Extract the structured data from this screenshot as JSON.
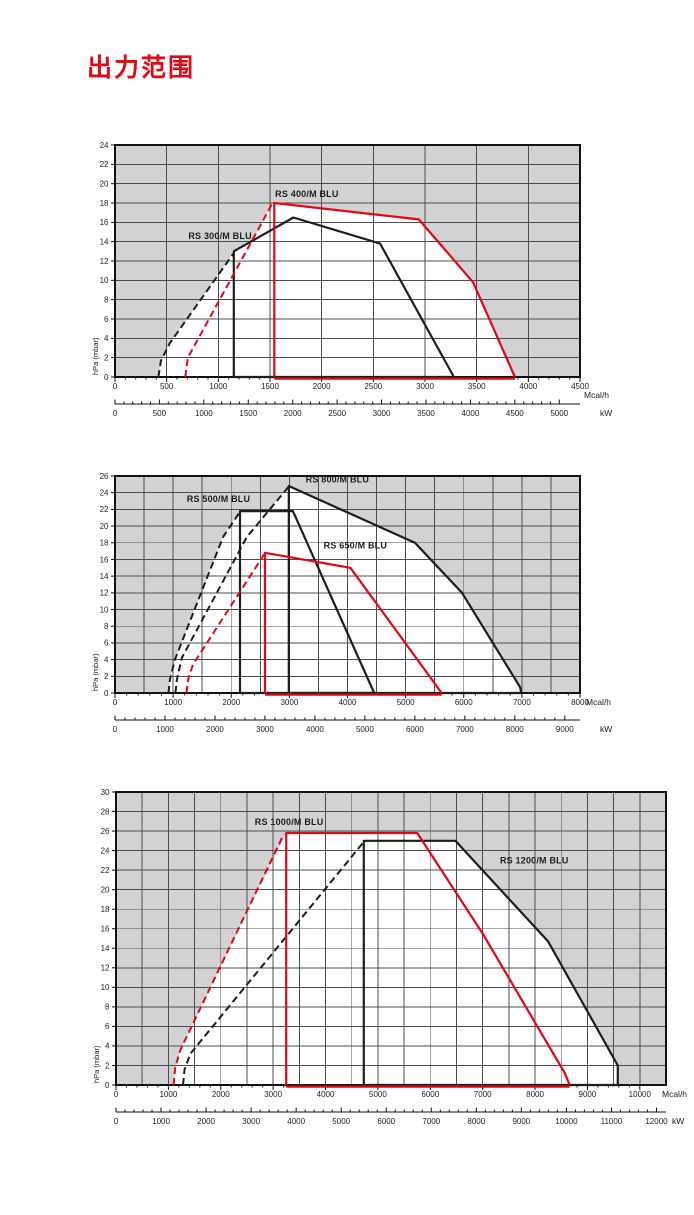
{
  "page": {
    "title": "出力范围"
  },
  "colors": {
    "red": "#e30613",
    "black": "#1d1d1b",
    "grey_region": "#d2d2d4",
    "grid_line": "#4d4d4d",
    "border": "#111111"
  },
  "chart_data": [
    {
      "type": "line",
      "ylabel": "hPa (mbar)",
      "x_unit": "Mcal/h",
      "kw_unit": "kW",
      "ylim": [
        0,
        24
      ],
      "y_tick_step": 2,
      "x_grid_max": 4500,
      "x_grid_step": 500,
      "mcal_axis": {
        "max": 4500,
        "label_step": 500,
        "minor_step": 100
      },
      "kw_axis": {
        "max": 5000,
        "label_step": 500,
        "minor_step": 100
      },
      "white_envelope": [
        [
          420,
          0
        ],
        [
          445,
          1.7
        ],
        [
          530,
          3.5
        ],
        [
          1150,
          12.9
        ],
        [
          1326,
          14.1
        ],
        [
          1520,
          17.9
        ],
        [
          1542,
          18
        ],
        [
          2940,
          16.3
        ],
        [
          3465,
          9.8
        ],
        [
          3870,
          0
        ]
      ],
      "series": [
        {
          "name": "RS 300/M BLU",
          "color": "black",
          "label_pos": [
            710,
            14.3
          ],
          "dashed": [
            [
              420,
              0
            ],
            [
              445,
              1.7
            ],
            [
              530,
              3.5
            ],
            [
              1148,
              12.8
            ]
          ],
          "solid": [
            [
              1150,
              0
            ],
            [
              1150,
              13
            ],
            [
              1726,
              16.5
            ],
            [
              2565,
              13.8
            ],
            [
              3280,
              0
            ]
          ],
          "bottom": [
            1150,
            3280
          ]
        },
        {
          "name": "RS 400/M BLU",
          "color": "red",
          "label_pos": [
            1550,
            18.6
          ],
          "dashed": [
            [
              680,
              0
            ],
            [
              705,
              2
            ],
            [
              1100,
              9.7
            ],
            [
              1520,
              17.9
            ]
          ],
          "solid": [
            [
              1542,
              0
            ],
            [
              1542,
              18
            ],
            [
              2940,
              16.3
            ],
            [
              3465,
              9.8
            ],
            [
              3870,
              0
            ]
          ],
          "bottom": [
            1542,
            3870
          ]
        }
      ]
    },
    {
      "type": "line",
      "ylabel": "hPa (mbar)",
      "x_unit": "Mcal/h",
      "kw_unit": "kW",
      "ylim": [
        0,
        26
      ],
      "y_tick_step": 2,
      "x_grid_max": 8000,
      "x_grid_step": 500,
      "mcal_axis": {
        "max": 8000,
        "label_step": 1000,
        "minor_step": 200
      },
      "kw_axis": {
        "max": 9000,
        "label_step": 1000,
        "minor_step": 200
      },
      "white_envelope": [
        [
          920,
          0
        ],
        [
          945,
          1.6
        ],
        [
          1030,
          4
        ],
        [
          1860,
          18.7
        ],
        [
          2150,
          21.8
        ],
        [
          2636,
          21.8
        ],
        [
          2990,
          24.8
        ],
        [
          5160,
          18
        ],
        [
          5970,
          12
        ],
        [
          6970,
          0.7
        ],
        [
          6990,
          0
        ]
      ],
      "series": [
        {
          "name": "RS 500/M BLU",
          "color": "black",
          "label_pos": [
            1235,
            22.9
          ],
          "dashed": [
            [
              920,
              0
            ],
            [
              945,
              1.6
            ],
            [
              1030,
              4
            ],
            [
              1860,
              18.7
            ],
            [
              2148,
              21.7
            ]
          ],
          "solid": [
            [
              2150,
              0
            ],
            [
              2150,
              21.8
            ],
            [
              3060,
              21.8
            ],
            [
              4460,
              0
            ]
          ],
          "bottom": [
            2150,
            4460
          ]
        },
        {
          "name": "RS 800/M BLU",
          "color": "black",
          "label_pos": [
            3280,
            25.2
          ],
          "dashed": [
            [
              1040,
              0
            ],
            [
              1065,
              1.6
            ],
            [
              1150,
              4.2
            ],
            [
              2270,
              18.7
            ],
            [
              2985,
              24.7
            ]
          ],
          "solid": [
            [
              2990,
              0
            ],
            [
              2990,
              24.8
            ],
            [
              5160,
              18
            ],
            [
              5970,
              12
            ],
            [
              6970,
              0.7
            ],
            [
              6990,
              0
            ]
          ],
          "bottom": [
            2990,
            6990
          ]
        },
        {
          "name": "RS 650/M BLU",
          "color": "red",
          "label_pos": [
            3590,
            17.3
          ],
          "dashed": [
            [
              1230,
              0
            ],
            [
              1258,
              1.6
            ],
            [
              1340,
              3.4
            ],
            [
              2575,
              16.7
            ]
          ],
          "solid": [
            [
              2580,
              0
            ],
            [
              2580,
              16.8
            ],
            [
              4050,
              15
            ],
            [
              5620,
              0
            ]
          ],
          "bottom": [
            2580,
            5620
          ]
        }
      ]
    },
    {
      "type": "line",
      "ylabel": "hPa (mbar)",
      "x_unit": "Mcal/h",
      "kw_unit": "kW",
      "ylim": [
        0,
        30
      ],
      "y_tick_step": 2,
      "x_grid_max": 10500,
      "x_grid_step": 500,
      "mcal_axis": {
        "max": 10000,
        "label_step": 1000,
        "minor_step": 200
      },
      "kw_axis": {
        "max": 12000,
        "label_step": 1000,
        "minor_step": 200
      },
      "white_envelope": [
        [
          1100,
          0
        ],
        [
          1130,
          1.8
        ],
        [
          1230,
          3.6
        ],
        [
          3250,
          25.8
        ],
        [
          5750,
          25.8
        ],
        [
          5815,
          25
        ],
        [
          6480,
          25
        ],
        [
          8250,
          14.7
        ],
        [
          9580,
          2
        ],
        [
          9580,
          0
        ]
      ],
      "series": [
        {
          "name": "RS 1200/M BLU",
          "color": "black",
          "label_pos": [
            7330,
            22.7
          ],
          "dashed": [
            [
              1280,
              0
            ],
            [
              1310,
              1.6
            ],
            [
              1420,
              3.2
            ],
            [
              4715,
              24.8
            ]
          ],
          "solid": [
            [
              4730,
              0
            ],
            [
              4730,
              25
            ],
            [
              6480,
              25
            ],
            [
              8250,
              14.7
            ],
            [
              9580,
              2
            ],
            [
              9580,
              0
            ]
          ],
          "bottom": [
            4730,
            9580
          ]
        },
        {
          "name": "RS 1000/M BLU",
          "color": "red",
          "label_pos": [
            2650,
            26.6
          ],
          "dashed": [
            [
              1100,
              0
            ],
            [
              1130,
              1.8
            ],
            [
              1230,
              3.6
            ],
            [
              3205,
              25.7
            ]
          ],
          "solid": [
            [
              3250,
              0
            ],
            [
              3250,
              25.8
            ],
            [
              5750,
              25.8
            ],
            [
              7000,
              15.5
            ],
            [
              8570,
              1.2
            ],
            [
              8660,
              0
            ]
          ],
          "bottom": [
            3250,
            8660
          ]
        }
      ]
    }
  ]
}
